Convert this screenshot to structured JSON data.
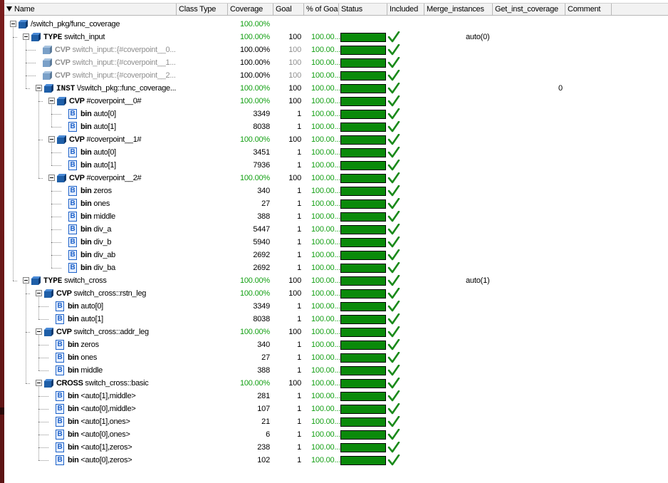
{
  "header": {
    "columns": [
      {
        "key": "name",
        "label": "Name"
      },
      {
        "key": "class_type",
        "label": "Class Type"
      },
      {
        "key": "coverage",
        "label": "Coverage"
      },
      {
        "key": "goal",
        "label": "Goal"
      },
      {
        "key": "pct_goal",
        "label": "% of Goal"
      },
      {
        "key": "status",
        "label": "Status"
      },
      {
        "key": "included",
        "label": "Included"
      },
      {
        "key": "merge",
        "label": "Merge_instances"
      },
      {
        "key": "get_inst",
        "label": "Get_inst_coverage"
      },
      {
        "key": "comment",
        "label": "Comment"
      }
    ]
  },
  "colors": {
    "coverage_green": "#14a014",
    "status_bar": "#0a8a0a",
    "check": "#1a8a1a"
  },
  "rows": [
    {
      "level": 0,
      "expander": true,
      "icon": "cube-icon",
      "kw": "",
      "text": "/switch_pkg/func_coverage",
      "coverage": "100.00%",
      "goal": "",
      "pct": "",
      "status": false,
      "included": false,
      "merge": "",
      "getinst": "",
      "gray": false
    },
    {
      "level": 1,
      "expander": true,
      "icon": "cube-icon",
      "kw": "TYPE",
      "kwmono": true,
      "text": "switch_input",
      "coverage": "100.00%",
      "goal": "100",
      "pct": "100.00...",
      "status": true,
      "included": true,
      "merge": "auto(0)",
      "getinst": "",
      "gray": false
    },
    {
      "level": 2,
      "expander": false,
      "icon": "cube-icon",
      "kw": "CVP",
      "text": "switch_input::{#coverpoint__0...",
      "coverage": "100.00%",
      "goal": "100",
      "pct": "100.00...",
      "status": true,
      "included": true,
      "merge": "",
      "getinst": "",
      "gray": true,
      "covblack": true
    },
    {
      "level": 2,
      "expander": false,
      "icon": "cube-icon",
      "kw": "CVP",
      "text": "switch_input::{#coverpoint__1...",
      "coverage": "100.00%",
      "goal": "100",
      "pct": "100.00...",
      "status": true,
      "included": true,
      "merge": "",
      "getinst": "",
      "gray": true,
      "covblack": true
    },
    {
      "level": 2,
      "expander": false,
      "icon": "cube-icon",
      "kw": "CVP",
      "text": "switch_input::{#coverpoint__2...",
      "coverage": "100.00%",
      "goal": "100",
      "pct": "100.00...",
      "status": true,
      "included": true,
      "merge": "",
      "getinst": "",
      "gray": true,
      "covblack": true
    },
    {
      "level": 2,
      "expander": true,
      "icon": "cube-icon",
      "kw": "INST",
      "kwmono": true,
      "text": "\\/switch_pkg::func_coverage...",
      "coverage": "100.00%",
      "goal": "100",
      "pct": "100.00...",
      "status": true,
      "included": true,
      "merge": "",
      "getinst": "0",
      "gray": false
    },
    {
      "level": 3,
      "expander": true,
      "icon": "cube-icon",
      "kw": "CVP",
      "text": "#coverpoint__0#",
      "coverage": "100.00%",
      "goal": "100",
      "pct": "100.00...",
      "status": true,
      "included": true,
      "merge": "",
      "getinst": "",
      "gray": false
    },
    {
      "level": 4,
      "expander": false,
      "icon": "bin-icon",
      "kw": "bin",
      "text": "auto[0]",
      "coverage": "3349",
      "goal": "1",
      "pct": "100.00...",
      "status": true,
      "included": true,
      "merge": "",
      "getinst": "",
      "gray": false,
      "covblack": true
    },
    {
      "level": 4,
      "expander": false,
      "icon": "bin-icon",
      "kw": "bin",
      "text": "auto[1]",
      "coverage": "8038",
      "goal": "1",
      "pct": "100.00...",
      "status": true,
      "included": true,
      "merge": "",
      "getinst": "",
      "gray": false,
      "covblack": true
    },
    {
      "level": 3,
      "expander": true,
      "icon": "cube-icon",
      "kw": "CVP",
      "text": "#coverpoint__1#",
      "coverage": "100.00%",
      "goal": "100",
      "pct": "100.00...",
      "status": true,
      "included": true,
      "merge": "",
      "getinst": "",
      "gray": false
    },
    {
      "level": 4,
      "expander": false,
      "icon": "bin-icon",
      "kw": "bin",
      "text": "auto[0]",
      "coverage": "3451",
      "goal": "1",
      "pct": "100.00...",
      "status": true,
      "included": true,
      "merge": "",
      "getinst": "",
      "gray": false,
      "covblack": true
    },
    {
      "level": 4,
      "expander": false,
      "icon": "bin-icon",
      "kw": "bin",
      "text": "auto[1]",
      "coverage": "7936",
      "goal": "1",
      "pct": "100.00...",
      "status": true,
      "included": true,
      "merge": "",
      "getinst": "",
      "gray": false,
      "covblack": true
    },
    {
      "level": 3,
      "expander": true,
      "icon": "cube-icon",
      "kw": "CVP",
      "text": "#coverpoint__2#",
      "coverage": "100.00%",
      "goal": "100",
      "pct": "100.00...",
      "status": true,
      "included": true,
      "merge": "",
      "getinst": "",
      "gray": false
    },
    {
      "level": 4,
      "expander": false,
      "icon": "bin-icon",
      "kw": "bin",
      "text": "zeros",
      "coverage": "340",
      "goal": "1",
      "pct": "100.00...",
      "status": true,
      "included": true,
      "merge": "",
      "getinst": "",
      "gray": false,
      "covblack": true
    },
    {
      "level": 4,
      "expander": false,
      "icon": "bin-icon",
      "kw": "bin",
      "text": "ones",
      "coverage": "27",
      "goal": "1",
      "pct": "100.00...",
      "status": true,
      "included": true,
      "merge": "",
      "getinst": "",
      "gray": false,
      "covblack": true
    },
    {
      "level": 4,
      "expander": false,
      "icon": "bin-icon",
      "kw": "bin",
      "text": "middle",
      "coverage": "388",
      "goal": "1",
      "pct": "100.00...",
      "status": true,
      "included": true,
      "merge": "",
      "getinst": "",
      "gray": false,
      "covblack": true
    },
    {
      "level": 4,
      "expander": false,
      "icon": "bin-icon",
      "kw": "bin",
      "text": "div_a",
      "coverage": "5447",
      "goal": "1",
      "pct": "100.00...",
      "status": true,
      "included": true,
      "merge": "",
      "getinst": "",
      "gray": false,
      "covblack": true
    },
    {
      "level": 4,
      "expander": false,
      "icon": "bin-icon",
      "kw": "bin",
      "text": "div_b",
      "coverage": "5940",
      "goal": "1",
      "pct": "100.00...",
      "status": true,
      "included": true,
      "merge": "",
      "getinst": "",
      "gray": false,
      "covblack": true
    },
    {
      "level": 4,
      "expander": false,
      "icon": "bin-icon",
      "kw": "bin",
      "text": "div_ab",
      "coverage": "2692",
      "goal": "1",
      "pct": "100.00...",
      "status": true,
      "included": true,
      "merge": "",
      "getinst": "",
      "gray": false,
      "covblack": true
    },
    {
      "level": 4,
      "expander": false,
      "icon": "bin-icon",
      "kw": "bin",
      "text": "div_ba",
      "coverage": "2692",
      "goal": "1",
      "pct": "100.00...",
      "status": true,
      "included": true,
      "merge": "",
      "getinst": "",
      "gray": false,
      "covblack": true
    },
    {
      "level": 1,
      "expander": true,
      "icon": "cube-icon",
      "kw": "TYPE",
      "kwmono": true,
      "text": "switch_cross",
      "coverage": "100.00%",
      "goal": "100",
      "pct": "100.00...",
      "status": true,
      "included": true,
      "merge": "auto(1)",
      "getinst": "",
      "gray": false
    },
    {
      "level": 2,
      "expander": true,
      "icon": "cube-icon",
      "kw": "CVP",
      "text": "switch_cross::rstn_leg",
      "coverage": "100.00%",
      "goal": "100",
      "pct": "100.00...",
      "status": true,
      "included": true,
      "merge": "",
      "getinst": "",
      "gray": false
    },
    {
      "level": 3,
      "expander": false,
      "icon": "bin-icon",
      "kw": "bin",
      "text": "auto[0]",
      "coverage": "3349",
      "goal": "1",
      "pct": "100.00...",
      "status": true,
      "included": true,
      "merge": "",
      "getinst": "",
      "gray": false,
      "covblack": true
    },
    {
      "level": 3,
      "expander": false,
      "icon": "bin-icon",
      "kw": "bin",
      "text": "auto[1]",
      "coverage": "8038",
      "goal": "1",
      "pct": "100.00...",
      "status": true,
      "included": true,
      "merge": "",
      "getinst": "",
      "gray": false,
      "covblack": true
    },
    {
      "level": 2,
      "expander": true,
      "icon": "cube-icon",
      "kw": "CVP",
      "text": "switch_cross::addr_leg",
      "coverage": "100.00%",
      "goal": "100",
      "pct": "100.00...",
      "status": true,
      "included": true,
      "merge": "",
      "getinst": "",
      "gray": false
    },
    {
      "level": 3,
      "expander": false,
      "icon": "bin-icon",
      "kw": "bin",
      "text": "zeros",
      "coverage": "340",
      "goal": "1",
      "pct": "100.00...",
      "status": true,
      "included": true,
      "merge": "",
      "getinst": "",
      "gray": false,
      "covblack": true
    },
    {
      "level": 3,
      "expander": false,
      "icon": "bin-icon",
      "kw": "bin",
      "text": "ones",
      "coverage": "27",
      "goal": "1",
      "pct": "100.00...",
      "status": true,
      "included": true,
      "merge": "",
      "getinst": "",
      "gray": false,
      "covblack": true
    },
    {
      "level": 3,
      "expander": false,
      "icon": "bin-icon",
      "kw": "bin",
      "text": "middle",
      "coverage": "388",
      "goal": "1",
      "pct": "100.00...",
      "status": true,
      "included": true,
      "merge": "",
      "getinst": "",
      "gray": false,
      "covblack": true
    },
    {
      "level": 2,
      "expander": true,
      "icon": "cube-icon",
      "kw": "CROSS",
      "text": "switch_cross::basic",
      "coverage": "100.00%",
      "goal": "100",
      "pct": "100.00...",
      "status": true,
      "included": true,
      "merge": "",
      "getinst": "",
      "gray": false
    },
    {
      "level": 3,
      "expander": false,
      "icon": "bin-icon",
      "kw": "bin",
      "text": "<auto[1],middle>",
      "coverage": "281",
      "goal": "1",
      "pct": "100.00...",
      "status": true,
      "included": true,
      "merge": "",
      "getinst": "",
      "gray": false,
      "covblack": true
    },
    {
      "level": 3,
      "expander": false,
      "icon": "bin-icon",
      "kw": "bin",
      "text": "<auto[0],middle>",
      "coverage": "107",
      "goal": "1",
      "pct": "100.00...",
      "status": true,
      "included": true,
      "merge": "",
      "getinst": "",
      "gray": false,
      "covblack": true
    },
    {
      "level": 3,
      "expander": false,
      "icon": "bin-icon",
      "kw": "bin",
      "text": "<auto[1],ones>",
      "coverage": "21",
      "goal": "1",
      "pct": "100.00...",
      "status": true,
      "included": true,
      "merge": "",
      "getinst": "",
      "gray": false,
      "covblack": true
    },
    {
      "level": 3,
      "expander": false,
      "icon": "bin-icon",
      "kw": "bin",
      "text": "<auto[0],ones>",
      "coverage": "6",
      "goal": "1",
      "pct": "100.00...",
      "status": true,
      "included": true,
      "merge": "",
      "getinst": "",
      "gray": false,
      "covblack": true
    },
    {
      "level": 3,
      "expander": false,
      "icon": "bin-icon",
      "kw": "bin",
      "text": "<auto[1],zeros>",
      "coverage": "238",
      "goal": "1",
      "pct": "100.00...",
      "status": true,
      "included": true,
      "merge": "",
      "getinst": "",
      "gray": false,
      "covblack": true
    },
    {
      "level": 3,
      "expander": false,
      "icon": "bin-icon",
      "kw": "bin",
      "text": "<auto[0],zeros>",
      "coverage": "102",
      "goal": "1",
      "pct": "100.00...",
      "status": true,
      "included": true,
      "merge": "",
      "getinst": "",
      "gray": false,
      "covblack": true
    }
  ]
}
